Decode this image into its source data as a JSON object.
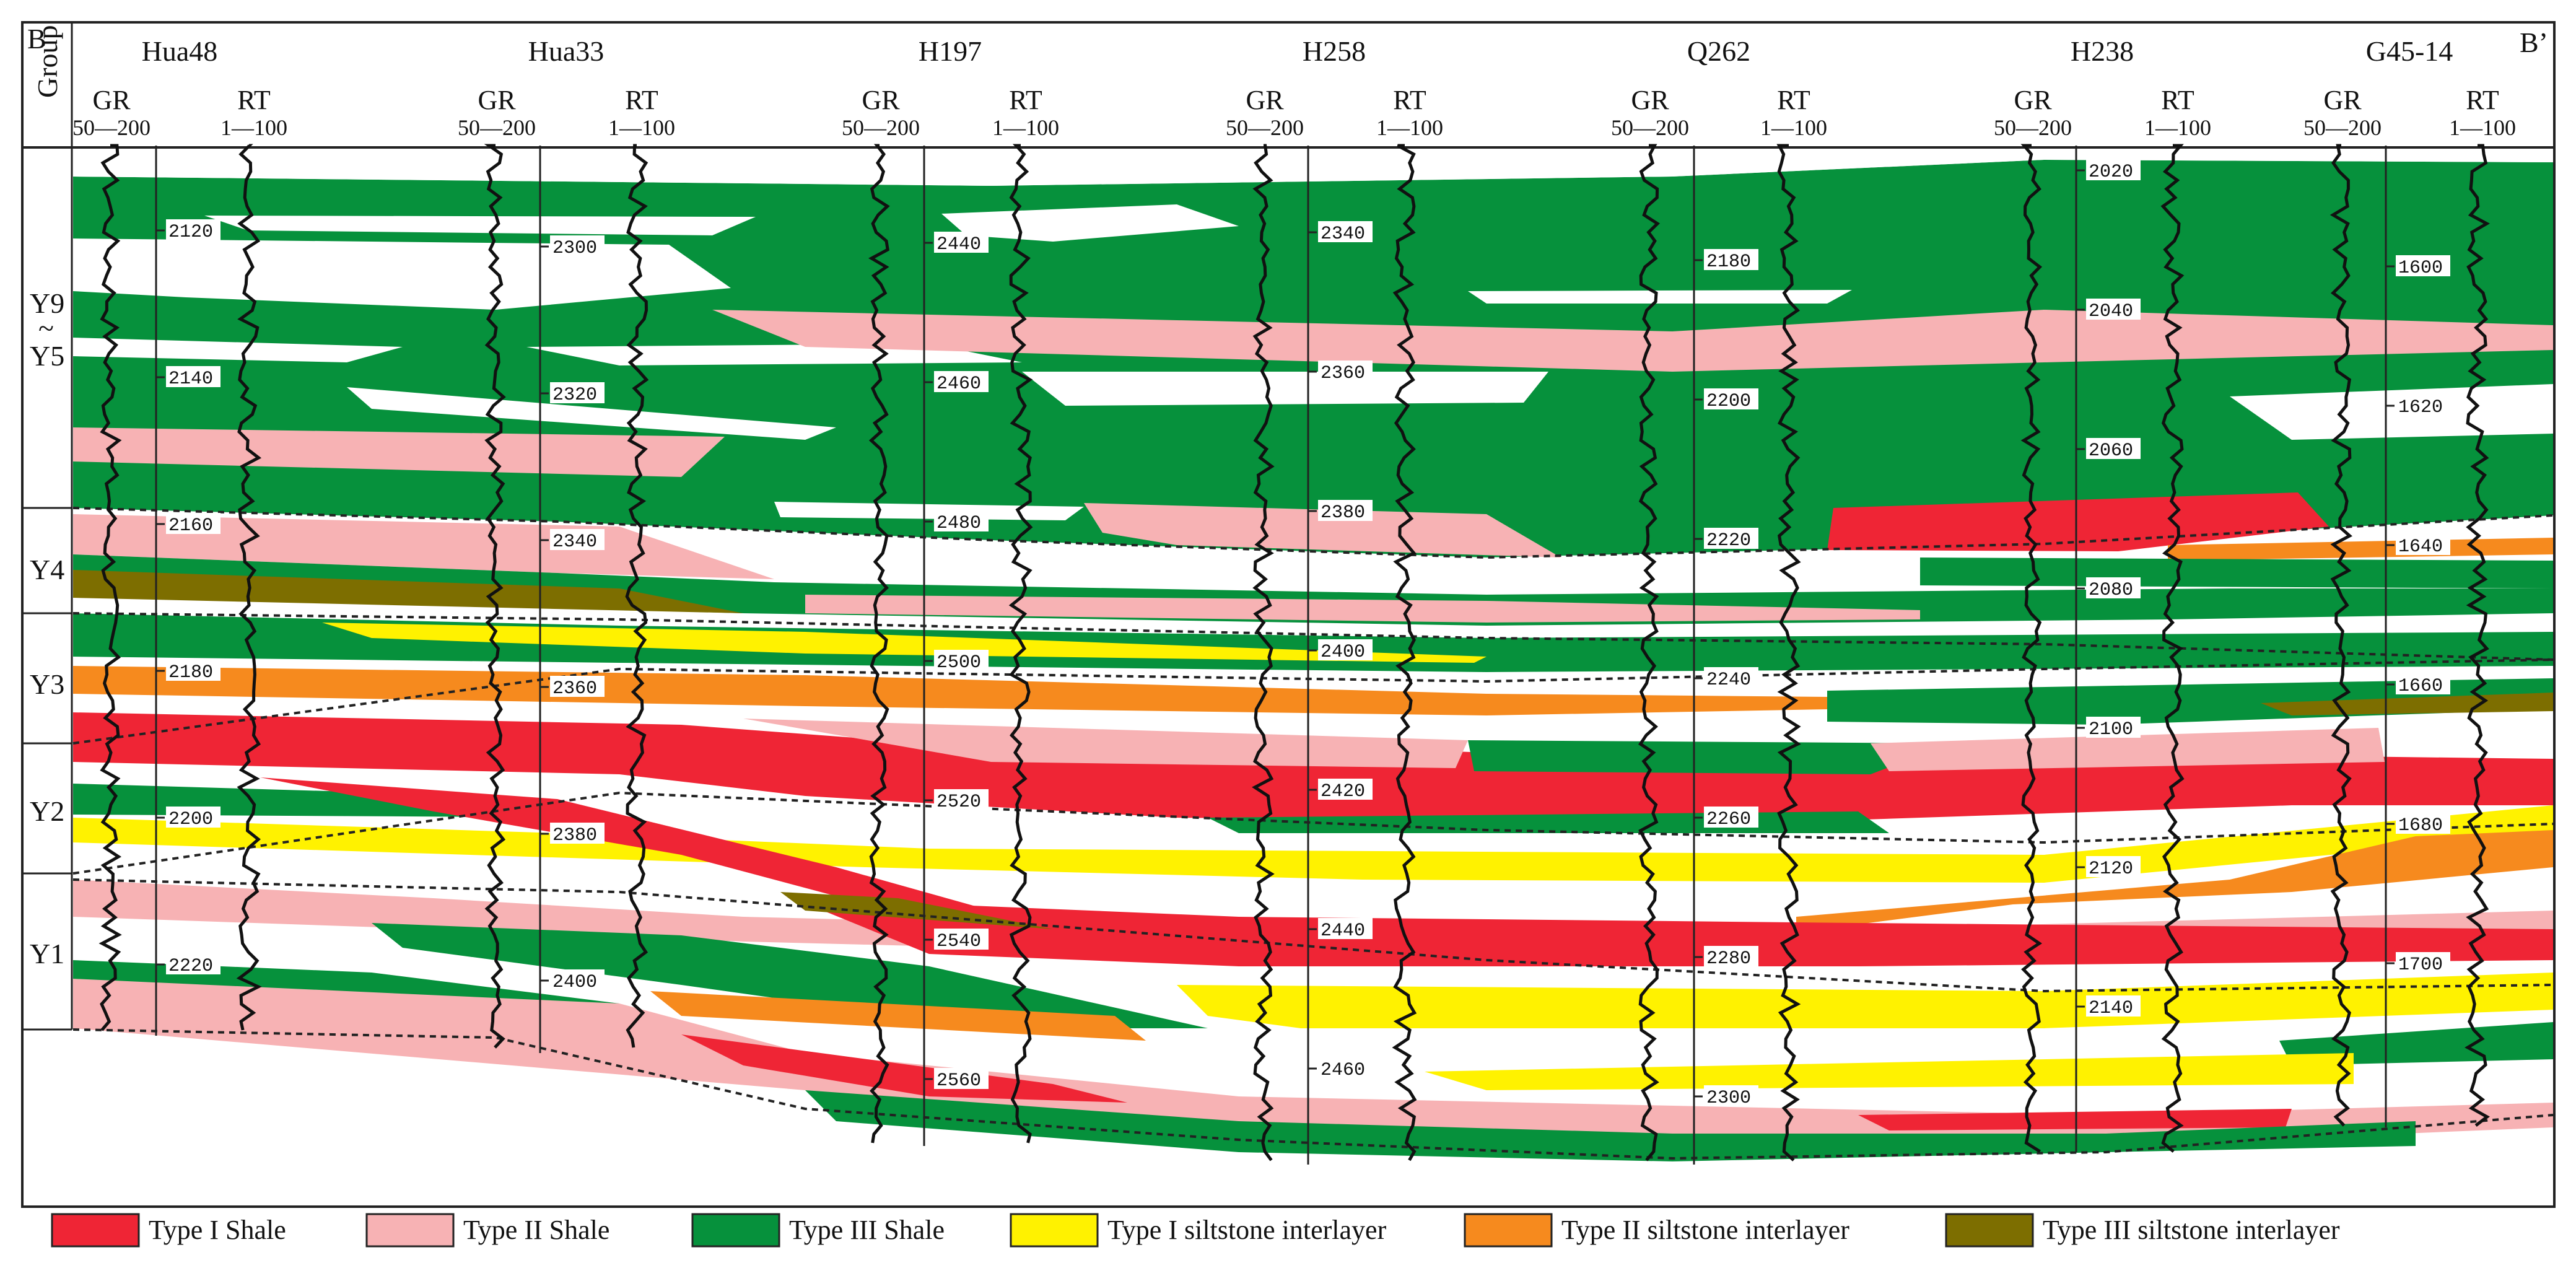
{
  "corners": {
    "left": "B",
    "right": "B’"
  },
  "group_header": "Group",
  "curve_labels": {
    "gr": "GR",
    "gr_range": "50—200",
    "rt": "RT",
    "rt_range": "1—100"
  },
  "zones": [
    {
      "id": "y9y5",
      "label_top": "Y9",
      "label_mid": "~",
      "label_bottom": "Y5"
    },
    {
      "id": "y4",
      "label": "Y4"
    },
    {
      "id": "y3",
      "label": "Y3"
    },
    {
      "id": "y2",
      "label": "Y2"
    },
    {
      "id": "y1",
      "label": "Y1"
    }
  ],
  "wells": [
    {
      "name": "Hua48",
      "depths": [
        "2120",
        "2140",
        "2160",
        "2180",
        "2200",
        "2220"
      ]
    },
    {
      "name": "Hua33",
      "depths": [
        "2300",
        "2320",
        "2340",
        "2360",
        "2380",
        "2400"
      ]
    },
    {
      "name": "H197",
      "depths": [
        "2440",
        "2460",
        "2480",
        "2500",
        "2520",
        "2540",
        "2560"
      ]
    },
    {
      "name": "H258",
      "depths": [
        "2340",
        "2360",
        "2380",
        "2400",
        "2420",
        "2440",
        "2460"
      ]
    },
    {
      "name": "Q262",
      "depths": [
        "2180",
        "2200",
        "2220",
        "2240",
        "2260",
        "2280",
        "2300"
      ]
    },
    {
      "name": "H238",
      "depths": [
        "2020",
        "2040",
        "2060",
        "2080",
        "2100",
        "2120",
        "2140"
      ]
    },
    {
      "name": "G45-14",
      "depths": [
        "1600",
        "1620",
        "1640",
        "1660",
        "1680",
        "1700"
      ]
    }
  ],
  "colors": {
    "type1_shale": "#ef2535",
    "type2_shale": "#f7b2b4",
    "type3_shale": "#06913c",
    "type1_silt": "#fff200",
    "type2_silt": "#f68a1e",
    "type3_silt": "#7d6e00"
  },
  "legend": [
    {
      "key": "type1_shale",
      "label": "Type I  Shale"
    },
    {
      "key": "type2_shale",
      "label": "Type  II  Shale"
    },
    {
      "key": "type3_shale",
      "label": "Type III  Shale"
    },
    {
      "key": "type1_silt",
      "label": "Type I siltstone interlayer"
    },
    {
      "key": "type2_silt",
      "label": "Type  II siltstone interlayer"
    },
    {
      "key": "type3_silt",
      "label": "Type  III siltstone interlayer"
    }
  ]
}
